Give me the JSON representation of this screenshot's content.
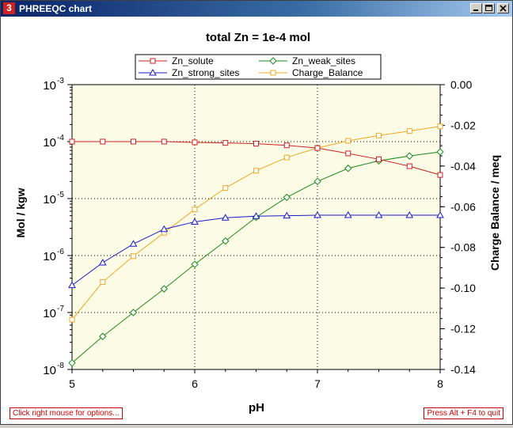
{
  "window": {
    "title": "PHREEQC chart",
    "icon_glyph": "3",
    "buttons": [
      "minimize-icon",
      "maximize-icon",
      "close-icon"
    ]
  },
  "hints": {
    "left": "Click right mouse for options...",
    "right": "Press Alt + F4 to quit"
  },
  "colors": {
    "Zn_solute": "#cc2222",
    "Zn_weak_sites": "#1a8a1a",
    "Zn_strong_sites": "#1a1acc",
    "Charge_Balance": "#f0a820",
    "plot_background": "#fbfbe6"
  },
  "chart_data": {
    "type": "line",
    "title": "total Zn = 1e-4 mol",
    "xlabel": "pH",
    "ylabel": "Mol / kgw",
    "y2label": "Charge Balance / meq",
    "xlim": [
      5,
      8
    ],
    "xticks": [
      "5",
      "6",
      "7",
      "8"
    ],
    "ylim": [
      1e-08,
      0.001
    ],
    "yscale": "log",
    "ytick_mantissa": "10",
    "ytick_exponents": [
      "-3",
      "-4",
      "-5",
      "-6",
      "-7",
      "-8"
    ],
    "y2lim": [
      -0.14,
      0.0
    ],
    "y2ticks": [
      "0.00",
      "-0.02",
      "-0.04",
      "-0.06",
      "-0.08",
      "-0.10",
      "-0.12",
      "-0.14"
    ],
    "grid": "dotted, major ticks",
    "legend_position": "top-center",
    "legend_order": [
      "Zn_solute",
      "Zn_weak_sites",
      "Zn_strong_sites",
      "Charge_Balance"
    ],
    "x": [
      5.0,
      5.25,
      5.5,
      5.75,
      6.0,
      6.25,
      6.5,
      6.75,
      7.0,
      7.25,
      7.5,
      7.75,
      8.0
    ],
    "series": [
      {
        "name": "Zn_solute",
        "axis": "left",
        "marker": "square",
        "values": [
          0.0001,
          0.0001,
          0.0001,
          0.0001,
          9.7e-05,
          9.5e-05,
          9.2e-05,
          8.6e-05,
          7.7e-05,
          6.2e-05,
          4.9e-05,
          3.7e-05,
          2.6e-05
        ]
      },
      {
        "name": "Zn_weak_sites",
        "axis": "left",
        "marker": "diamond",
        "values": [
          1.3e-08,
          3.8e-08,
          1e-07,
          2.6e-07,
          7e-07,
          1.8e-06,
          4.7e-06,
          1.05e-05,
          2e-05,
          3.4e-05,
          4.6e-05,
          5.6e-05,
          6.6e-05
        ]
      },
      {
        "name": "Zn_strong_sites",
        "axis": "left",
        "marker": "triangle",
        "values": [
          3e-07,
          7.5e-07,
          1.6e-06,
          2.9e-06,
          3.9e-06,
          4.6e-06,
          4.9e-06,
          5e-06,
          5.1e-06,
          5.1e-06,
          5.1e-06,
          5.1e-06,
          5.1e-06
        ]
      },
      {
        "name": "Charge_Balance",
        "axis": "right",
        "marker": "square",
        "values": [
          -0.1155,
          -0.097,
          -0.0843,
          -0.0728,
          -0.0613,
          -0.0508,
          -0.0423,
          -0.0358,
          -0.0311,
          -0.0276,
          -0.025,
          -0.0228,
          -0.0205
        ]
      }
    ]
  }
}
